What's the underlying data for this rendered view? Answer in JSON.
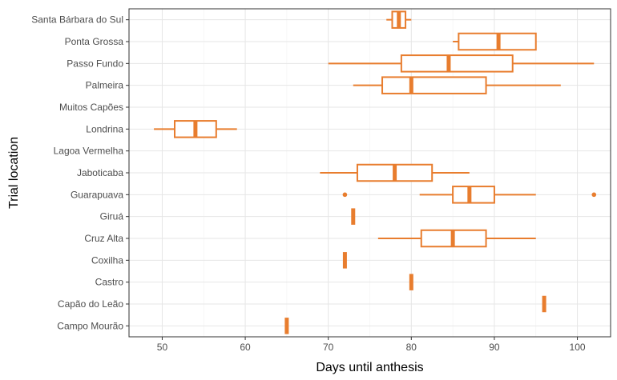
{
  "chart_data": {
    "type": "boxplot",
    "orientation": "horizontal",
    "title": "",
    "xlabel": "Days until anthesis",
    "ylabel": "Trial location",
    "xlim": [
      46,
      104
    ],
    "xticks": [
      50,
      60,
      70,
      80,
      90,
      100
    ],
    "grid": true,
    "legend": "none",
    "color": "#E87D2E",
    "categories": [
      "Campo Mourão",
      "Capão do Leão",
      "Castro",
      "Coxilha",
      "Cruz Alta",
      "Giruá",
      "Guarapuava",
      "Jaboticaba",
      "Lagoa Vermelha",
      "Londrina",
      "Muitos Capões",
      "Palmeira",
      "Passo Fundo",
      "Ponta Grossa",
      "Santa Bárbara do Sul"
    ],
    "boxes": [
      {
        "location": "Campo Mourão",
        "min": 65,
        "q1": 65,
        "median": 65,
        "q3": 65,
        "max": 65,
        "outliers": []
      },
      {
        "location": "Capão do Leão",
        "min": 96,
        "q1": 96,
        "median": 96,
        "q3": 96,
        "max": 96,
        "outliers": []
      },
      {
        "location": "Castro",
        "min": 80,
        "q1": 80,
        "median": 80,
        "q3": 80,
        "max": 80,
        "outliers": []
      },
      {
        "location": "Coxilha",
        "min": 72,
        "q1": 72,
        "median": 72,
        "q3": 72,
        "max": 72,
        "outliers": []
      },
      {
        "location": "Cruz Alta",
        "min": 76,
        "q1": 81.2,
        "median": 85,
        "q3": 89,
        "max": 95,
        "outliers": []
      },
      {
        "location": "Giruá",
        "min": 73,
        "q1": 73,
        "median": 73,
        "q3": 73,
        "max": 73,
        "outliers": []
      },
      {
        "location": "Guarapuava",
        "min": 81,
        "q1": 85,
        "median": 87,
        "q3": 90,
        "max": 95,
        "outliers": [
          72,
          102
        ]
      },
      {
        "location": "Jaboticaba",
        "min": 69,
        "q1": 73.5,
        "median": 78,
        "q3": 82.5,
        "max": 87,
        "outliers": []
      },
      {
        "location": "Lagoa Vermelha",
        "min": null,
        "q1": null,
        "median": null,
        "q3": null,
        "max": null,
        "outliers": []
      },
      {
        "location": "Londrina",
        "min": 49,
        "q1": 51.5,
        "median": 54,
        "q3": 56.5,
        "max": 59,
        "outliers": []
      },
      {
        "location": "Muitos Capões",
        "min": null,
        "q1": null,
        "median": null,
        "q3": null,
        "max": null,
        "outliers": []
      },
      {
        "location": "Palmeira",
        "min": 73,
        "q1": 76.5,
        "median": 80,
        "q3": 89,
        "max": 98,
        "outliers": []
      },
      {
        "location": "Passo Fundo",
        "min": 70,
        "q1": 78.8,
        "median": 84.5,
        "q3": 92.2,
        "max": 102,
        "outliers": []
      },
      {
        "location": "Ponta Grossa",
        "min": 85,
        "q1": 85.7,
        "median": 90.5,
        "q3": 95,
        "max": 95,
        "outliers": []
      },
      {
        "location": "Santa Bárbara do Sul",
        "min": 77,
        "q1": 77.7,
        "median": 78.5,
        "q3": 79.3,
        "max": 80,
        "outliers": []
      }
    ]
  }
}
